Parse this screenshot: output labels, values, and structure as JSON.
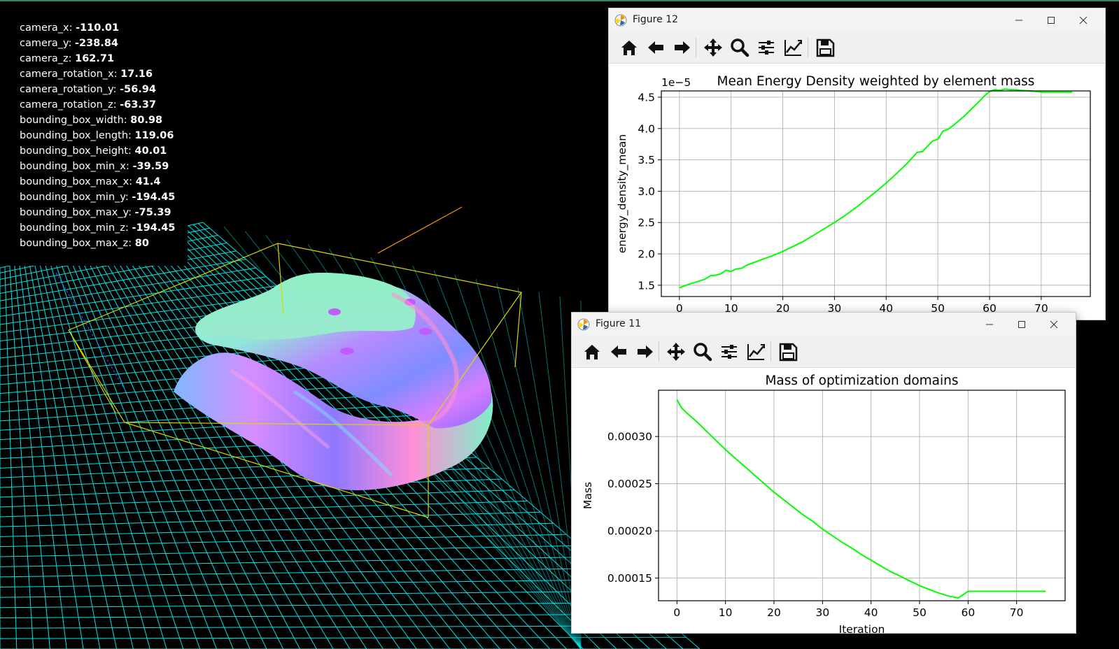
{
  "info_panel": [
    {
      "key": "camera_x: ",
      "value": "-110.01"
    },
    {
      "key": "camera_y: ",
      "value": "-238.84"
    },
    {
      "key": "camera_z: ",
      "value": "162.71"
    },
    {
      "key": "camera_rotation_x: ",
      "value": "17.16"
    },
    {
      "key": "camera_rotation_y: ",
      "value": "-56.94"
    },
    {
      "key": "camera_rotation_z: ",
      "value": "-63.37"
    },
    {
      "key": "bounding_box_width: ",
      "value": "80.98"
    },
    {
      "key": "bounding_box_length: ",
      "value": "119.06"
    },
    {
      "key": "bounding_box_height: ",
      "value": "40.01"
    },
    {
      "key": "bounding_box_min_x: ",
      "value": "-39.59"
    },
    {
      "key": "bounding_box_max_x: ",
      "value": "41.4"
    },
    {
      "key": "bounding_box_min_y: ",
      "value": "-194.45"
    },
    {
      "key": "bounding_box_max_y: ",
      "value": "-75.39"
    },
    {
      "key": "bounding_box_min_z: ",
      "value": "-194.45"
    },
    {
      "key": "bounding_box_max_z: ",
      "value": "80"
    }
  ],
  "colors": {
    "grid": "#00e5e5",
    "bbox": "#d8d800",
    "axis_y": "#ff9900",
    "line": "#00ff00"
  },
  "toolbar_icons": [
    "home-icon",
    "back-arrow-icon",
    "forward-arrow-icon",
    "pan-icon",
    "zoom-icon",
    "configure-subplots-icon",
    "edit-axis-icon",
    "save-icon"
  ],
  "figure12": {
    "window_title": "Figure 12",
    "chart_data": {
      "type": "line",
      "title": "Mean Energy Density weighted by element mass",
      "xlabel": "",
      "ylabel": "energy_density_mean",
      "offset_text": "1e−5",
      "xlim": [
        -3.5,
        79.5
      ],
      "ylim": [
        1.32,
        4.6
      ],
      "xticks": [
        0,
        10,
        20,
        30,
        40,
        50,
        60,
        70
      ],
      "yticks": [
        1.5,
        2.0,
        2.5,
        3.0,
        3.5,
        4.0,
        4.5
      ],
      "ytick_labels": [
        "1.5",
        "2.0",
        "2.5",
        "3.0",
        "3.5",
        "4.0",
        "4.5"
      ],
      "grid": true,
      "series": [
        {
          "x": [
            0,
            2,
            4,
            5,
            6,
            7,
            8,
            9,
            10,
            11,
            12,
            13,
            14,
            16,
            18,
            20,
            22,
            24,
            26,
            28,
            30,
            32,
            34,
            36,
            38,
            40,
            42,
            44,
            46,
            47,
            48,
            49,
            50,
            51,
            52,
            53,
            54,
            55,
            56,
            57,
            58,
            59,
            60,
            61,
            62,
            63,
            64,
            65,
            66,
            68,
            70,
            72,
            74,
            76
          ],
          "y": [
            1.46,
            1.52,
            1.57,
            1.6,
            1.65,
            1.66,
            1.68,
            1.74,
            1.72,
            1.76,
            1.77,
            1.82,
            1.85,
            1.91,
            1.97,
            2.04,
            2.12,
            2.2,
            2.3,
            2.4,
            2.5,
            2.61,
            2.73,
            2.86,
            2.99,
            3.13,
            3.28,
            3.44,
            3.62,
            3.63,
            3.72,
            3.8,
            3.83,
            3.96,
            3.99,
            4.05,
            4.12,
            4.19,
            4.27,
            4.35,
            4.43,
            4.52,
            4.59,
            4.62,
            4.61,
            4.63,
            4.62,
            4.62,
            4.61,
            4.6,
            4.58,
            4.58,
            4.58,
            4.58
          ]
        }
      ]
    }
  },
  "figure11": {
    "window_title": "Figure 11",
    "chart_data": {
      "type": "line",
      "title": "Mass of optimization domains",
      "xlabel": "Iteration",
      "ylabel": "Mass",
      "xlim": [
        -3.8,
        80
      ],
      "ylim": [
        0.000126,
        0.000349
      ],
      "xticks": [
        0,
        10,
        20,
        30,
        40,
        50,
        60,
        70
      ],
      "yticks": [
        0.00015,
        0.0002,
        0.00025,
        0.0003
      ],
      "ytick_labels": [
        "0.00015",
        "0.00020",
        "0.00025",
        "0.00030"
      ],
      "grid": true,
      "series": [
        {
          "x": [
            0,
            1,
            2,
            4,
            6,
            8,
            10,
            12,
            14,
            16,
            18,
            20,
            22,
            24,
            26,
            28,
            30,
            32,
            34,
            36,
            38,
            40,
            42,
            44,
            46,
            48,
            50,
            52,
            54,
            56,
            58,
            60,
            62,
            64,
            66,
            68,
            70,
            72,
            74,
            76
          ],
          "y": [
            0.000339,
            0.00033,
            0.000325,
            0.000316,
            0.000306,
            0.000296,
            0.000286,
            0.000277,
            0.000268,
            0.000259,
            0.00025,
            0.000241,
            0.000233,
            0.000225,
            0.000217,
            0.00021,
            0.000202,
            0.000195,
            0.000188,
            0.000182,
            0.000175,
            0.000169,
            0.000163,
            0.000157,
            0.000152,
            0.000147,
            0.000142,
            0.000138,
            0.000134,
            0.000131,
            0.000129,
            0.000136,
            0.000136,
            0.000136,
            0.000136,
            0.000136,
            0.000136,
            0.000136,
            0.000136,
            0.000136
          ]
        }
      ]
    }
  }
}
